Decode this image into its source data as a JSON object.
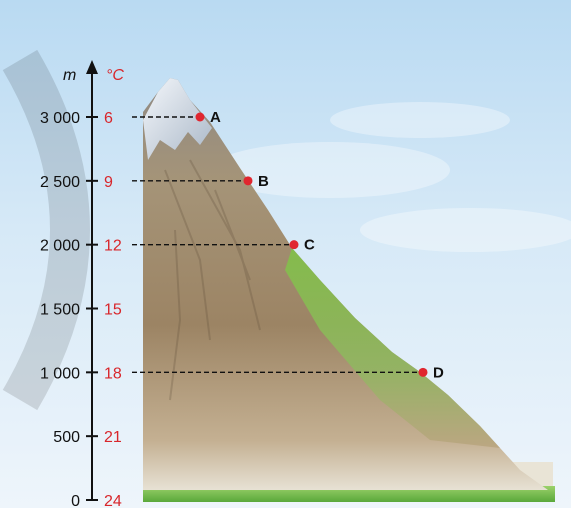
{
  "axis": {
    "height_unit": "m",
    "temp_unit": "°C",
    "ticks": [
      {
        "height": "3 000",
        "temp": "6"
      },
      {
        "height": "2 500",
        "temp": "9"
      },
      {
        "height": "2 000",
        "temp": "12"
      },
      {
        "height": "1 500",
        "temp": "15"
      },
      {
        "height": "1 000",
        "temp": "18"
      },
      {
        "height": "500",
        "temp": "21"
      },
      {
        "height": "0",
        "temp": "24"
      }
    ]
  },
  "points": [
    {
      "label": "A",
      "height": 3000
    },
    {
      "label": "B",
      "height": 2500
    },
    {
      "label": "C",
      "height": 2000
    },
    {
      "label": "D",
      "height": 1000
    }
  ],
  "colors": {
    "axis": "#111111",
    "temperature": "#d8262b",
    "point": "#e0262f",
    "sky": "#cfe6f6",
    "grass": "#7cc243",
    "rock": "#a08a6a",
    "snow": "#e8eef5"
  }
}
